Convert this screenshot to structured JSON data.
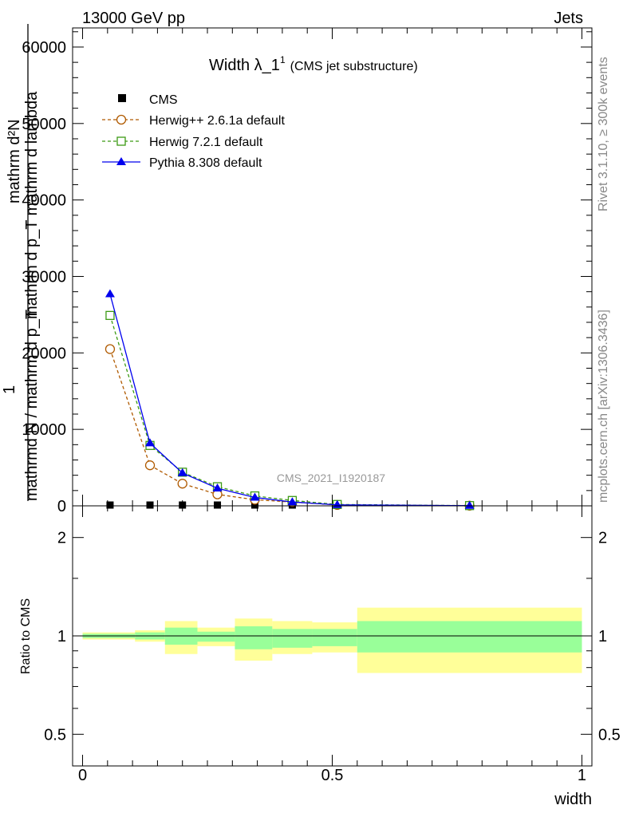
{
  "header": {
    "left": "13000 GeV pp",
    "right": "Jets"
  },
  "side_labels": {
    "rivet": "Rivet 3.1.10, ≥ 300k events",
    "mcplots": "mcplots.cern.ch [arXiv:1306.3436]"
  },
  "watermark": "CMS_2021_I1920187",
  "colors": {
    "cms": "#000000",
    "herwigpp": "#b05a00",
    "herwig7": "#3c9a14",
    "pythia": "#0000ee",
    "band_inner": "#99ff99",
    "band_outer": "#ffff99"
  },
  "chart_data": [
    {
      "type": "line",
      "title_main": "Width λ_1",
      "title_sup": "1",
      "title_sub": "(CMS jet substructure)",
      "ylabel_top": "mathrm d²N",
      "ylabel_mid": "mathrm d p_T mathrm d lambda",
      "ylabel_bot": "1",
      "ylabel_den": "mathrmd N / mathrm d p_T",
      "ylim": [
        0,
        62500
      ],
      "xlim": [
        -0.02,
        1.02
      ],
      "yticks": [
        0,
        10000,
        20000,
        30000,
        40000,
        50000,
        60000
      ],
      "ytick_labels": [
        "0",
        "10000",
        "20000",
        "30000",
        "40000",
        "50000",
        "60000"
      ],
      "legend": [
        "CMS",
        "Herwig++ 2.6.1a default",
        "Herwig 7.2.1 default",
        "Pythia 8.308 default"
      ],
      "series": [
        {
          "name": "CMS",
          "marker": "square",
          "x": [
            0.055,
            0.135,
            0.2,
            0.27,
            0.345,
            0.42,
            0.51,
            0.775
          ],
          "y": [
            0,
            0,
            0,
            0,
            0,
            0,
            0,
            0
          ]
        },
        {
          "name": "Herwig++ 2.6.1a default",
          "marker": "circle",
          "style": "dashed",
          "x": [
            0.055,
            0.135,
            0.2,
            0.27,
            0.345,
            0.42,
            0.51,
            0.775
          ],
          "y": [
            20500,
            5300,
            2900,
            1500,
            800,
            500,
            120,
            20
          ]
        },
        {
          "name": "Herwig 7.2.1 default",
          "marker": "open-square",
          "style": "dashed",
          "x": [
            0.055,
            0.135,
            0.2,
            0.27,
            0.345,
            0.42,
            0.51,
            0.775
          ],
          "y": [
            24900,
            7900,
            4400,
            2500,
            1300,
            700,
            180,
            30
          ]
        },
        {
          "name": "Pythia 8.308 default",
          "marker": "triangle",
          "style": "solid",
          "x": [
            0.055,
            0.135,
            0.2,
            0.27,
            0.345,
            0.42,
            0.51,
            0.775
          ],
          "y": [
            27700,
            8200,
            4300,
            2300,
            1100,
            500,
            130,
            20
          ]
        }
      ]
    },
    {
      "type": "area",
      "ylabel": "Ratio to CMS",
      "xlabel": "width",
      "ylim": [
        0.4,
        2.5
      ],
      "xlim": [
        -0.02,
        1.02
      ],
      "yticks": [
        0.5,
        1,
        2
      ],
      "ytick_labels": [
        "0.5",
        "1",
        "2"
      ],
      "xticks": [
        0,
        0.5,
        1
      ],
      "xtick_labels": [
        "0",
        "0.5",
        "1"
      ],
      "bins": [
        {
          "x0": 0.0,
          "x1": 0.105,
          "in_lo": 0.985,
          "in_hi": 1.015,
          "out_lo": 0.975,
          "out_hi": 1.025
        },
        {
          "x0": 0.105,
          "x1": 0.165,
          "in_lo": 0.975,
          "in_hi": 1.025,
          "out_lo": 0.96,
          "out_hi": 1.04
        },
        {
          "x0": 0.165,
          "x1": 0.23,
          "in_lo": 0.94,
          "in_hi": 1.06,
          "out_lo": 0.88,
          "out_hi": 1.11
        },
        {
          "x0": 0.23,
          "x1": 0.305,
          "in_lo": 0.96,
          "in_hi": 1.03,
          "out_lo": 0.93,
          "out_hi": 1.06
        },
        {
          "x0": 0.305,
          "x1": 0.38,
          "in_lo": 0.91,
          "in_hi": 1.07,
          "out_lo": 0.84,
          "out_hi": 1.13
        },
        {
          "x0": 0.38,
          "x1": 0.46,
          "in_lo": 0.92,
          "in_hi": 1.05,
          "out_lo": 0.88,
          "out_hi": 1.11
        },
        {
          "x0": 0.46,
          "x1": 0.55,
          "in_lo": 0.93,
          "in_hi": 1.05,
          "out_lo": 0.89,
          "out_hi": 1.1
        },
        {
          "x0": 0.55,
          "x1": 1.0,
          "in_lo": 0.89,
          "in_hi": 1.11,
          "out_lo": 0.77,
          "out_hi": 1.22
        }
      ],
      "reference": 1
    }
  ]
}
